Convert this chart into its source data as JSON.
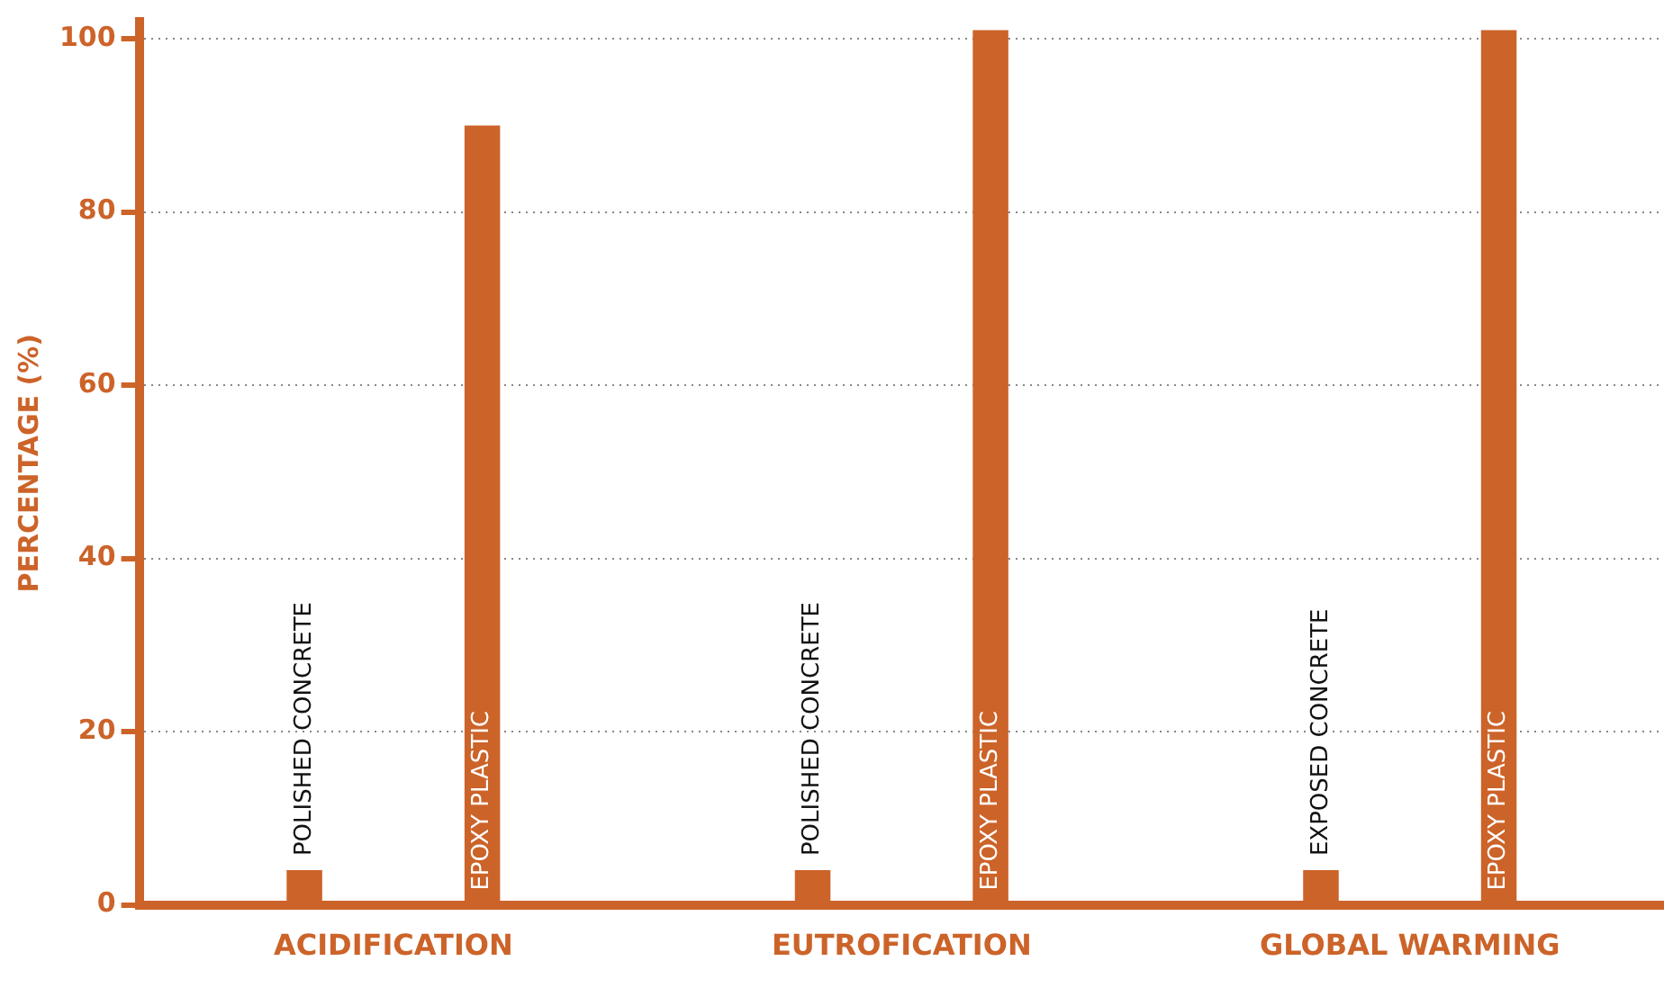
{
  "chart_data": {
    "type": "bar",
    "ylabel": "PERCENTAGE (%)",
    "categories": [
      "ACIDIFICATION",
      "EUTROFICATION",
      "GLOBAL WARMING"
    ],
    "series": [
      {
        "color": "#cc6329",
        "values": [
          4,
          4,
          4
        ],
        "value_labels": [
          "POLISHED CONCRETE",
          "POLISHED CONCRETE",
          "EXPOSED CONCRETE"
        ]
      },
      {
        "color": "#cc6329",
        "values": [
          90,
          101,
          101
        ],
        "value_labels": [
          "EPOXY PLASTIC",
          "EPOXY PLASTIC",
          "EPOXY PLASTIC"
        ]
      }
    ],
    "ylim": [
      0,
      102
    ],
    "yticks": [
      0,
      20,
      40,
      60,
      80,
      100
    ],
    "grid": "y",
    "legend": false
  }
}
